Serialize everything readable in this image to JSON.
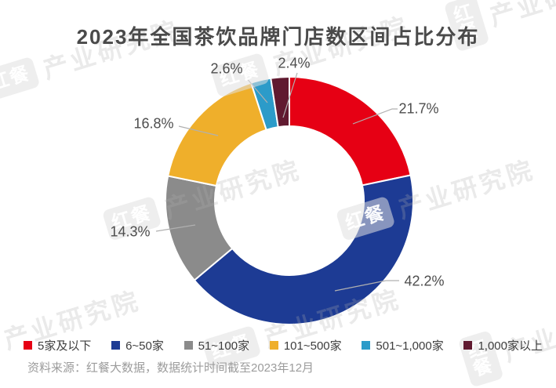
{
  "title": "2023年全国茶饮品牌门店数区间占比分布",
  "source_note": "资料来源：红餐大数据，数据统计时间截至2023年12月",
  "watermark": {
    "badge": "红餐",
    "text": "产业研究院"
  },
  "chart_data": {
    "type": "pie",
    "subtype": "donut",
    "title": "2023年全国茶饮品牌门店数区间占比分布",
    "unit": "%",
    "start_angle_deg": 0,
    "direction": "clockwise",
    "legend_position": "bottom",
    "categories": [
      "5家及以下",
      "6~50家",
      "51~100家",
      "101~500家",
      "501~1,000家",
      "1,000家以上"
    ],
    "values": [
      21.7,
      42.2,
      14.3,
      16.8,
      2.6,
      2.4
    ],
    "labels": [
      "21.7%",
      "42.2%",
      "14.3%",
      "16.8%",
      "2.6%",
      "2.4%"
    ],
    "colors": [
      "#E60014",
      "#1D3B94",
      "#8B8B8B",
      "#EFAF2B",
      "#2C9BC9",
      "#601A30"
    ],
    "leader_line_color": "#B0B0B0",
    "label_text_color": "#4D4D4D"
  }
}
